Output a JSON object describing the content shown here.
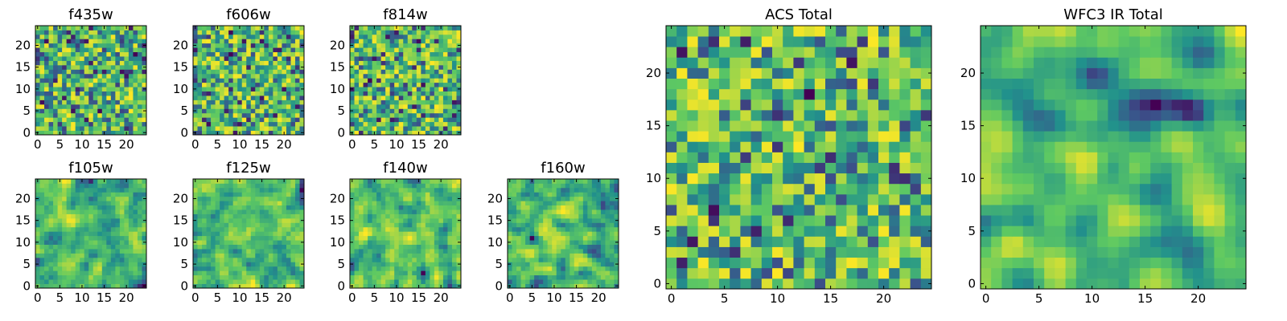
{
  "chart_data": [
    {
      "id": "f435w",
      "type": "heatmap",
      "title": "f435w",
      "size": 25,
      "seed": 11,
      "smooth": 0,
      "xticks": [
        "0",
        "5",
        "10",
        "15",
        "20"
      ],
      "yticks": [
        "0",
        "5",
        "10",
        "15",
        "20"
      ]
    },
    {
      "id": "f606w",
      "type": "heatmap",
      "title": "f606w",
      "size": 25,
      "seed": 23,
      "smooth": 0,
      "xticks": [
        "0",
        "5",
        "10",
        "15",
        "20"
      ],
      "yticks": [
        "0",
        "5",
        "10",
        "15",
        "20"
      ]
    },
    {
      "id": "f814w",
      "type": "heatmap",
      "title": "f814w",
      "size": 25,
      "seed": 37,
      "smooth": 0,
      "xticks": [
        "0",
        "5",
        "10",
        "15",
        "20"
      ],
      "yticks": [
        "0",
        "5",
        "10",
        "15",
        "20"
      ]
    },
    {
      "id": "f105w",
      "type": "heatmap",
      "title": "f105w",
      "size": 25,
      "seed": 41,
      "smooth": 1,
      "xticks": [
        "0",
        "5",
        "10",
        "15",
        "20"
      ],
      "yticks": [
        "0",
        "5",
        "10",
        "15",
        "20"
      ]
    },
    {
      "id": "f125w",
      "type": "heatmap",
      "title": "f125w",
      "size": 25,
      "seed": 53,
      "smooth": 1,
      "xticks": [
        "0",
        "5",
        "10",
        "15",
        "20"
      ],
      "yticks": [
        "0",
        "5",
        "10",
        "15",
        "20"
      ]
    },
    {
      "id": "f140w",
      "type": "heatmap",
      "title": "f140w",
      "size": 25,
      "seed": 67,
      "smooth": 1,
      "xticks": [
        "0",
        "5",
        "10",
        "15",
        "20"
      ],
      "yticks": [
        "0",
        "5",
        "10",
        "15",
        "20"
      ]
    },
    {
      "id": "f160w",
      "type": "heatmap",
      "title": "f160w",
      "size": 25,
      "seed": 71,
      "smooth": 1,
      "xticks": [
        "0",
        "5",
        "10",
        "15",
        "20"
      ],
      "yticks": [
        "0",
        "5",
        "10",
        "15",
        "20"
      ]
    },
    {
      "id": "acs-total",
      "type": "heatmap",
      "title": "ACS Total",
      "size": 25,
      "seed": 83,
      "smooth": 0,
      "xticks": [
        "0",
        "5",
        "10",
        "15",
        "20"
      ],
      "yticks": [
        "0",
        "5",
        "10",
        "15",
        "20"
      ]
    },
    {
      "id": "wfc3-ir-total",
      "type": "heatmap",
      "title": "WFC3 IR Total",
      "size": 25,
      "seed": 97,
      "smooth": 2,
      "xticks": [
        "0",
        "5",
        "10",
        "15",
        "20"
      ],
      "yticks": [
        "0",
        "5",
        "10",
        "15",
        "20"
      ]
    }
  ],
  "colormap": [
    "#440154",
    "#3b528b",
    "#21918c",
    "#5ec962",
    "#fde725"
  ]
}
